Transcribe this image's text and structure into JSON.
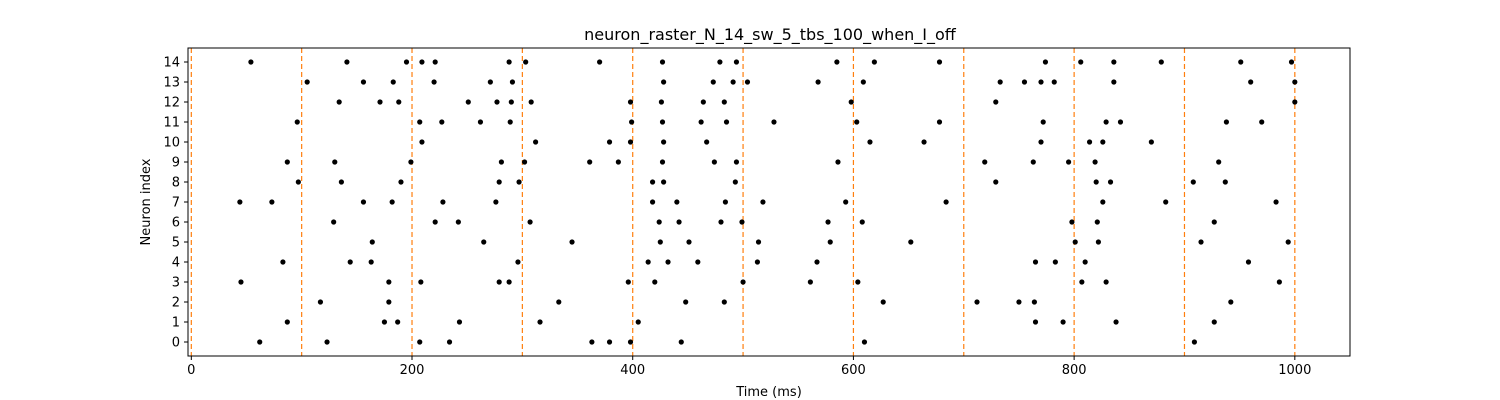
{
  "chart_data": {
    "type": "scatter",
    "title": "neuron_raster_N_14_sw_5_tbs_100_when_I_off",
    "xlabel": "Time (ms)",
    "ylabel": "Neuron index",
    "xlim": [
      -3,
      1050
    ],
    "ylim": [
      -0.7,
      14.7
    ],
    "xticks": [
      0,
      200,
      400,
      600,
      800,
      1000
    ],
    "yticks": [
      0,
      1,
      2,
      3,
      4,
      5,
      6,
      7,
      8,
      9,
      10,
      11,
      12,
      13,
      14
    ],
    "grid": false,
    "marker_color": "#000000",
    "vline_color": "#ff7f0e",
    "vlines": [
      0,
      100,
      200,
      300,
      400,
      500,
      600,
      700,
      800,
      900,
      1000
    ],
    "spikes": [
      {
        "neuron": 0,
        "times": [
          62,
          123,
          207,
          234,
          363,
          379,
          398,
          444,
          610,
          909
        ]
      },
      {
        "neuron": 1,
        "times": [
          87,
          175,
          187,
          243,
          316,
          405,
          765,
          790,
          838,
          927
        ]
      },
      {
        "neuron": 2,
        "times": [
          117,
          179,
          333,
          448,
          483,
          627,
          712,
          750,
          764,
          942
        ]
      },
      {
        "neuron": 3,
        "times": [
          45,
          179,
          208,
          279,
          288,
          396,
          420,
          500,
          561,
          604,
          807,
          829,
          986
        ]
      },
      {
        "neuron": 4,
        "times": [
          83,
          144,
          163,
          296,
          414,
          432,
          459,
          513,
          567,
          765,
          783,
          810,
          958
        ]
      },
      {
        "neuron": 5,
        "times": [
          164,
          265,
          345,
          425,
          451,
          514,
          579,
          652,
          801,
          822,
          915,
          994
        ]
      },
      {
        "neuron": 6,
        "times": [
          129,
          221,
          242,
          307,
          424,
          442,
          480,
          499,
          577,
          608,
          798,
          821,
          927
        ]
      },
      {
        "neuron": 7,
        "times": [
          44,
          73,
          156,
          182,
          228,
          276,
          418,
          440,
          484,
          518,
          593,
          684,
          826,
          883,
          983
        ]
      },
      {
        "neuron": 8,
        "times": [
          97,
          136,
          190,
          279,
          297,
          418,
          428,
          493,
          729,
          820,
          833,
          908,
          937
        ]
      },
      {
        "neuron": 9,
        "times": [
          87,
          130,
          199,
          281,
          302,
          361,
          387,
          427,
          474,
          494,
          586,
          719,
          763,
          795,
          819,
          931
        ]
      },
      {
        "neuron": 10,
        "times": [
          209,
          312,
          379,
          398,
          428,
          467,
          615,
          664,
          770,
          814,
          826,
          870
        ]
      },
      {
        "neuron": 11,
        "times": [
          96,
          207,
          227,
          262,
          289,
          399,
          427,
          462,
          485,
          528,
          603,
          678,
          772,
          829,
          842,
          938,
          970
        ]
      },
      {
        "neuron": 12,
        "times": [
          134,
          171,
          188,
          251,
          277,
          290,
          308,
          398,
          426,
          464,
          483,
          598,
          729,
          1000
        ]
      },
      {
        "neuron": 13,
        "times": [
          105,
          156,
          183,
          220,
          271,
          291,
          428,
          473,
          491,
          504,
          568,
          609,
          733,
          755,
          770,
          782,
          836,
          960,
          1000
        ]
      },
      {
        "neuron": 14,
        "times": [
          54,
          141,
          195,
          209,
          221,
          288,
          303,
          370,
          427,
          479,
          494,
          585,
          619,
          678,
          774,
          806,
          836,
          879,
          951,
          997
        ]
      }
    ]
  }
}
